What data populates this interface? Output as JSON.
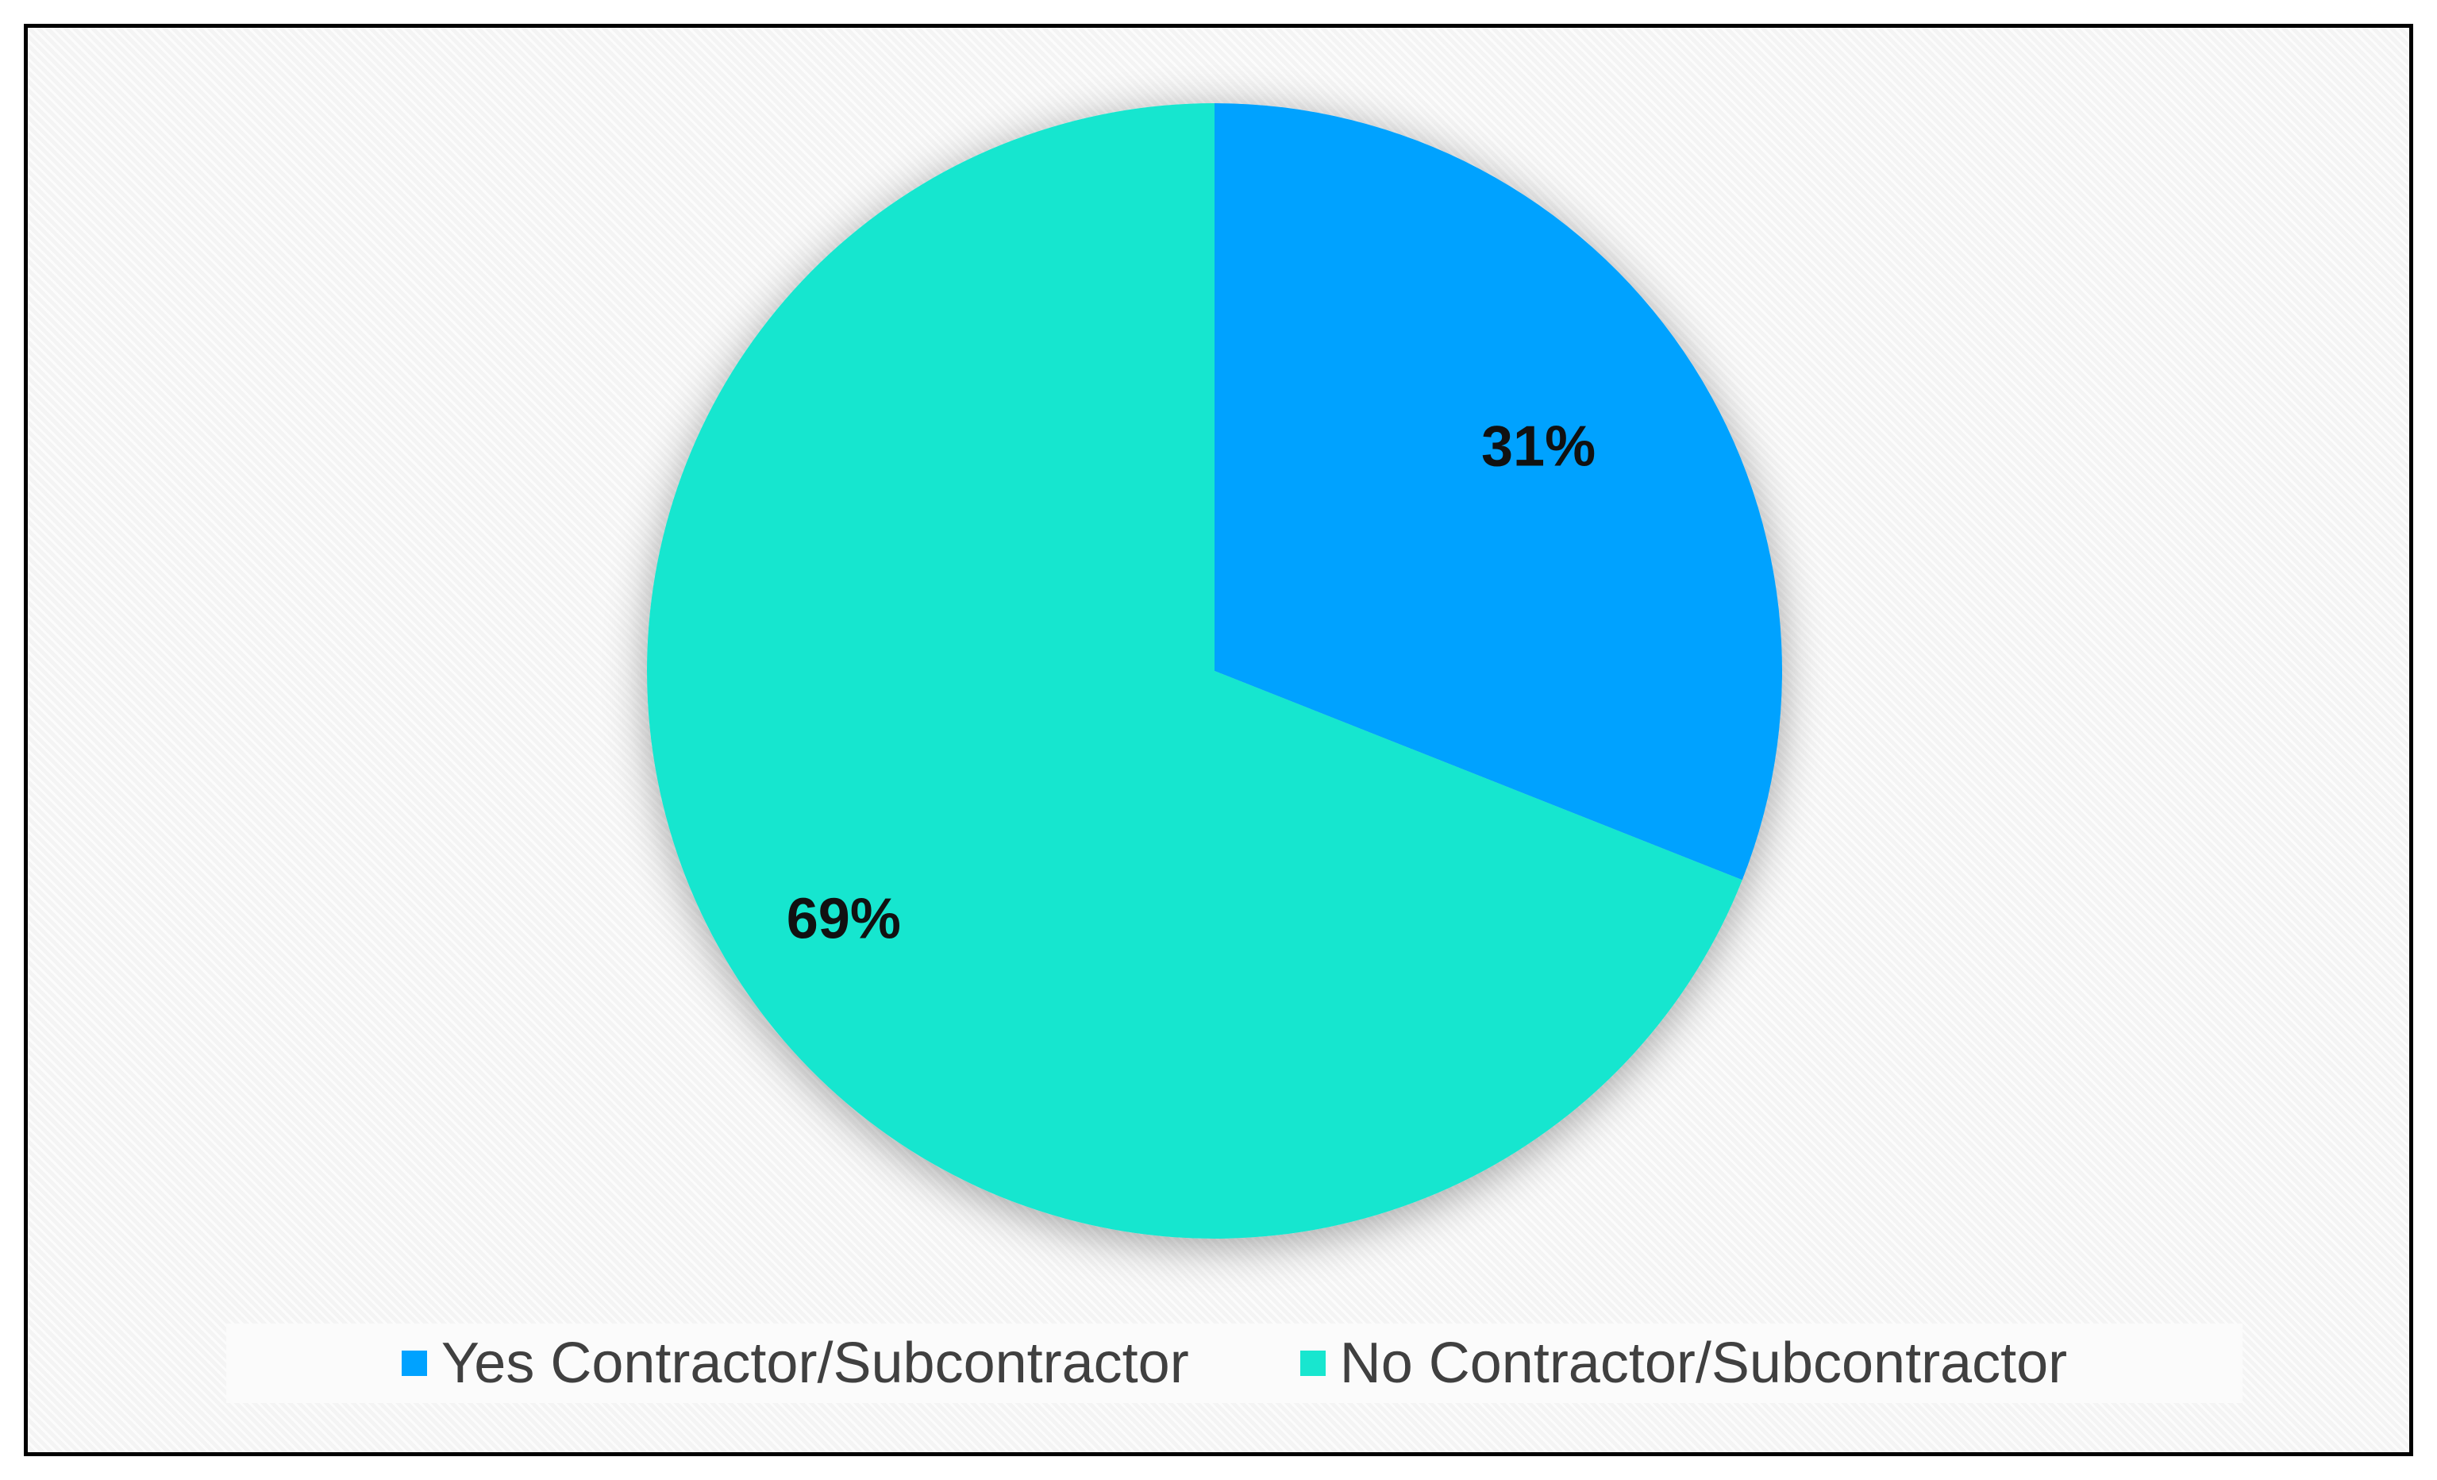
{
  "chart_data": {
    "type": "pie",
    "categories": [
      "Yes Contractor/Subcontractor",
      "No Contractor/Subcontractor"
    ],
    "values": [
      31,
      69
    ],
    "data_labels": [
      "31%",
      "69%"
    ],
    "colors": [
      "#00a2ff",
      "#18e6cf"
    ],
    "legend_position": "bottom",
    "start_angle_deg": 0,
    "direction": "clockwise"
  }
}
